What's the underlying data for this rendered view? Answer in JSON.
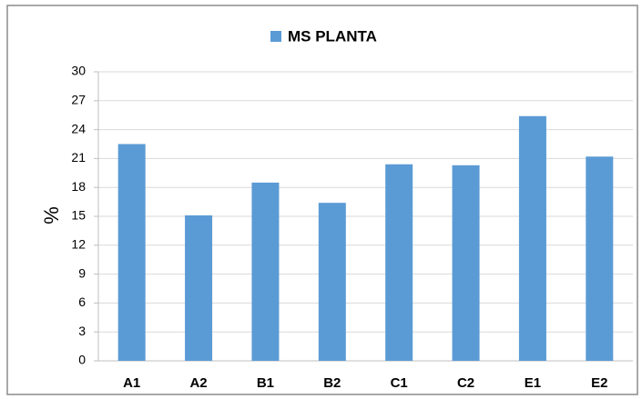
{
  "chart_data": {
    "type": "bar",
    "legend": "top",
    "ylabel": "%",
    "categories": [
      "A1",
      "A2",
      "B1",
      "B2",
      "C1",
      "C2",
      "E1",
      "E2"
    ],
    "series": [
      {
        "name": "MS PLANTA",
        "color": "#5b9bd5",
        "values": [
          22.5,
          15.1,
          18.5,
          16.4,
          20.4,
          20.3,
          25.4,
          21.2
        ]
      }
    ],
    "ylim": [
      0,
      30
    ],
    "yticks": [
      0,
      3,
      6,
      9,
      12,
      15,
      18,
      21,
      24,
      27,
      30
    ],
    "grid": true
  }
}
